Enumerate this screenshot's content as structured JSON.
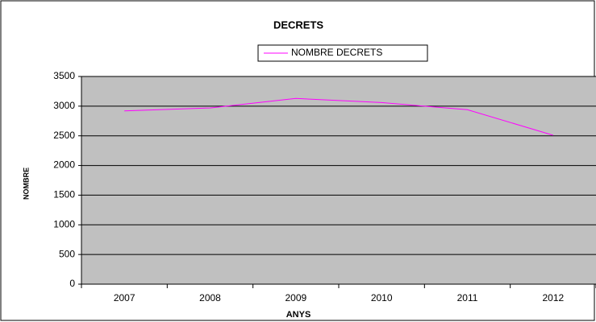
{
  "chart_data": {
    "type": "line",
    "title": "DECRETS",
    "xlabel": "ANYS",
    "ylabel": "NOMBRE",
    "categories": [
      "2007",
      "2008",
      "2009",
      "2010",
      "2011",
      "2012"
    ],
    "series": [
      {
        "name": "NOMBRE DECRETS",
        "color": "#ff00ff",
        "values": [
          2920,
          2970,
          3130,
          3060,
          2940,
          2510
        ]
      }
    ],
    "ylim": [
      0,
      3500
    ],
    "yticks": [
      0,
      500,
      1000,
      1500,
      2000,
      2500,
      3000,
      3500
    ],
    "grid": true,
    "legend": "top"
  }
}
